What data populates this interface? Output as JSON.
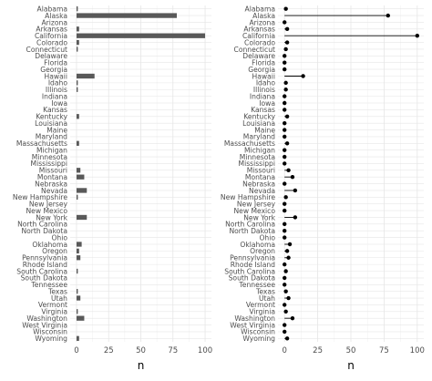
{
  "chart_data": [
    {
      "type": "bar",
      "orientation": "horizontal",
      "xlabel": "n",
      "ylabel": "",
      "xlim": [
        0,
        100
      ],
      "x_ticks": [
        0,
        25,
        50,
        75,
        100
      ],
      "grid": true,
      "categories": [
        "Alabama",
        "Alaska",
        "Arizona",
        "Arkansas",
        "California",
        "Colorado",
        "Connecticut",
        "Delaware",
        "Florida",
        "Georgia",
        "Hawaii",
        "Idaho",
        "Illinois",
        "Indiana",
        "Iowa",
        "Kansas",
        "Kentucky",
        "Louisiana",
        "Maine",
        "Maryland",
        "Massachusetts",
        "Michigan",
        "Minnesota",
        "Mississippi",
        "Missouri",
        "Montana",
        "Nebraska",
        "Nevada",
        "New Hampshire",
        "New Jersey",
        "New Mexico",
        "New York",
        "North Carolina",
        "North Dakota",
        "Ohio",
        "Oklahoma",
        "Oregon",
        "Pennsylvania",
        "Rhode Island",
        "South Carolina",
        "South Dakota",
        "Tennessee",
        "Texas",
        "Utah",
        "Vermont",
        "Virginia",
        "Washington",
        "West Virginia",
        "Wisconsin",
        "Wyoming"
      ],
      "values": [
        1,
        78,
        0,
        2,
        100,
        2,
        1,
        0,
        0,
        0,
        14,
        1,
        1,
        0,
        0,
        0,
        2,
        0,
        0,
        0,
        2,
        0,
        0,
        0,
        3,
        6,
        0,
        8,
        1,
        0,
        0,
        8,
        0,
        0,
        0,
        4,
        2,
        3,
        0,
        1,
        0,
        0,
        1,
        3,
        0,
        1,
        6,
        0,
        0,
        2
      ]
    },
    {
      "type": "lollipop",
      "orientation": "horizontal",
      "xlabel": "n",
      "ylabel": "",
      "xlim": [
        0,
        100
      ],
      "x_ticks": [
        0,
        25,
        50,
        75,
        100
      ],
      "grid": true,
      "categories": [
        "Alabama",
        "Alaska",
        "Arizona",
        "Arkansas",
        "California",
        "Colorado",
        "Connecticut",
        "Delaware",
        "Florida",
        "Georgia",
        "Hawaii",
        "Idaho",
        "Illinois",
        "Indiana",
        "Iowa",
        "Kansas",
        "Kentucky",
        "Louisiana",
        "Maine",
        "Maryland",
        "Massachusetts",
        "Michigan",
        "Minnesota",
        "Mississippi",
        "Missouri",
        "Montana",
        "Nebraska",
        "Nevada",
        "New Hampshire",
        "New Jersey",
        "New Mexico",
        "New York",
        "North Carolina",
        "North Dakota",
        "Ohio",
        "Oklahoma",
        "Oregon",
        "Pennsylvania",
        "Rhode Island",
        "South Carolina",
        "South Dakota",
        "Tennessee",
        "Texas",
        "Utah",
        "Vermont",
        "Virginia",
        "Washington",
        "West Virginia",
        "Wisconsin",
        "Wyoming"
      ],
      "values": [
        1,
        78,
        0,
        2,
        100,
        2,
        1,
        0,
        0,
        0,
        14,
        1,
        1,
        0,
        0,
        0,
        2,
        0,
        0,
        0,
        2,
        0,
        0,
        0,
        3,
        6,
        0,
        8,
        1,
        0,
        0,
        8,
        0,
        0,
        0,
        4,
        2,
        3,
        0,
        1,
        0,
        0,
        1,
        3,
        0,
        1,
        6,
        0,
        0,
        2
      ]
    }
  ],
  "colors": {
    "bar": "#595959",
    "point": "#000000",
    "grid_major": "#e6e6e6",
    "grid_minor": "#f2f2f2",
    "text": "#4d4d4d"
  }
}
